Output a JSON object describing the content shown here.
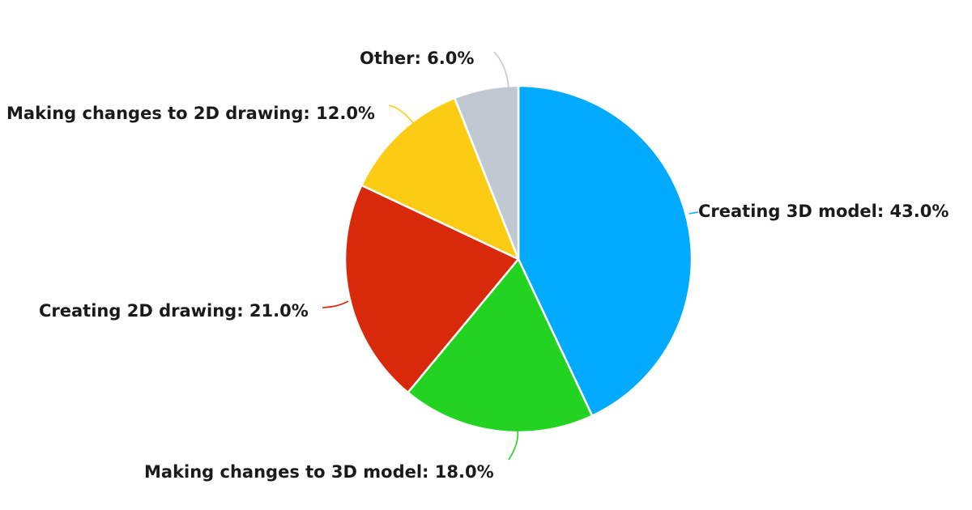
{
  "chart_data": {
    "type": "pie",
    "title": "",
    "start_angle_deg": 0,
    "direction": "clockwise",
    "slices": [
      {
        "label": "Creating 3D model",
        "value": 43.0,
        "display": "Creating 3D model: 43.0%",
        "color": "#00aaff"
      },
      {
        "label": "Making changes to 3D model",
        "value": 18.0,
        "display": "Making changes to 3D model: 18.0%",
        "color": "#22d322"
      },
      {
        "label": "Creating 2D drawing",
        "value": 21.0,
        "display": "Creating 2D drawing: 21.0%",
        "color": "#d9290b"
      },
      {
        "label": "Making changes to 2D drawing",
        "value": 12.0,
        "display": "Making changes to 2D drawing: 12.0%",
        "color": "#fccc14"
      },
      {
        "label": "Other",
        "value": 6.0,
        "display": "Other: 6.0%",
        "color": "#c0c8d1"
      }
    ]
  }
}
